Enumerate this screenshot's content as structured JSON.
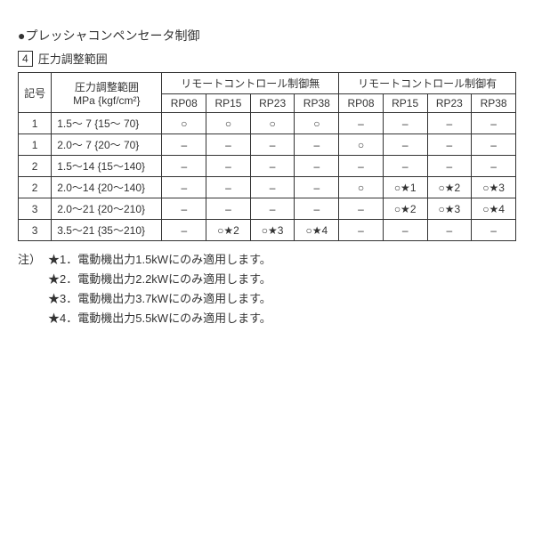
{
  "heading": "●プレッシャコンペンセータ制御",
  "subheading_box": "4",
  "subheading_text": "圧力調整範囲",
  "table": {
    "header_kigo": "記号",
    "header_range_l1": "圧力調整範囲",
    "header_range_l2": "MPa {kgf/cm²}",
    "header_group_no": "リモートコントロール制御無",
    "header_group_yes": "リモートコントロール制御有",
    "rp_cols": [
      "RP08",
      "RP15",
      "RP23",
      "RP38"
    ],
    "rows": [
      {
        "kigo": "1",
        "range": "1.5～  7 {15～  70}",
        "no": [
          "○",
          "○",
          "○",
          "○"
        ],
        "yes": [
          "–",
          "–",
          "–",
          "–"
        ]
      },
      {
        "kigo": "1",
        "range": "2.0～  7 {20～  70}",
        "no": [
          "–",
          "–",
          "–",
          "–"
        ],
        "yes": [
          "○",
          "–",
          "–",
          "–"
        ]
      },
      {
        "kigo": "2",
        "range": "1.5～14 {15～140}",
        "no": [
          "–",
          "–",
          "–",
          "–"
        ],
        "yes": [
          "–",
          "–",
          "–",
          "–"
        ]
      },
      {
        "kigo": "2",
        "range": "2.0～14 {20～140}",
        "no": [
          "–",
          "–",
          "–",
          "–"
        ],
        "yes": [
          "○",
          "○★1",
          "○★2",
          "○★3"
        ]
      },
      {
        "kigo": "3",
        "range": "2.0～21 {20～210}",
        "no": [
          "–",
          "–",
          "–",
          "–"
        ],
        "yes": [
          "–",
          "○★2",
          "○★3",
          "○★4"
        ]
      },
      {
        "kigo": "3",
        "range": "3.5～21 {35～210}",
        "no": [
          "–",
          "○★2",
          "○★3",
          "○★4"
        ],
        "yes": [
          "–",
          "–",
          "–",
          "–"
        ]
      }
    ]
  },
  "notes": {
    "label": "注）",
    "items": [
      "★1．電動機出力1.5kWにのみ適用します。",
      "★2．電動機出力2.2kWにのみ適用します。",
      "★3．電動機出力3.7kWにのみ適用します。",
      "★4．電動機出力5.5kWにのみ適用します。"
    ]
  }
}
